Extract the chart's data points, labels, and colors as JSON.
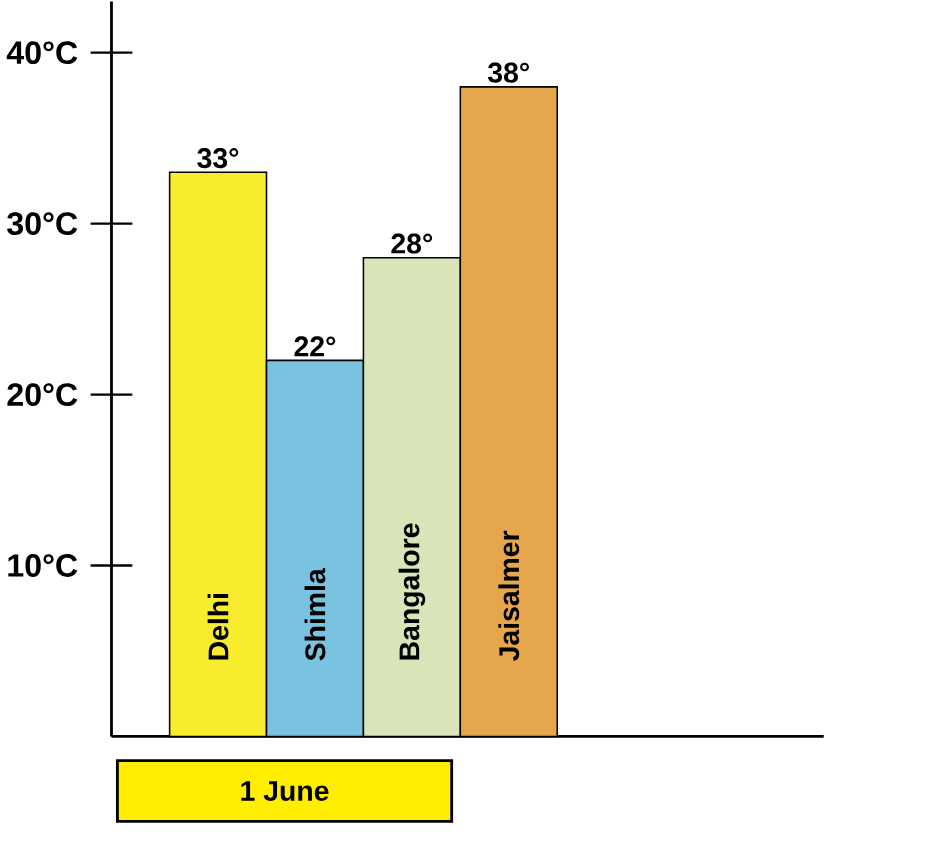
{
  "chart_data": {
    "type": "bar",
    "xlabel": "1 June",
    "categories": [
      "Delhi",
      "Shimla",
      "Bangalore",
      "Jaisalmer"
    ],
    "values": [
      33,
      22,
      28,
      38
    ],
    "value_labels": [
      "33°",
      "22°",
      "28°",
      "38°"
    ],
    "colors": [
      "#f7ec2e",
      "#79c3e0",
      "#d9e4b8",
      "#e6a64b"
    ],
    "ylim": [
      0,
      43
    ],
    "yticks": [
      {
        "value": 10,
        "label": "10°C"
      },
      {
        "value": 20,
        "label": "20°C"
      },
      {
        "value": 30,
        "label": "30°C"
      },
      {
        "value": 40,
        "label": "40°C"
      }
    ],
    "grid": false
  }
}
